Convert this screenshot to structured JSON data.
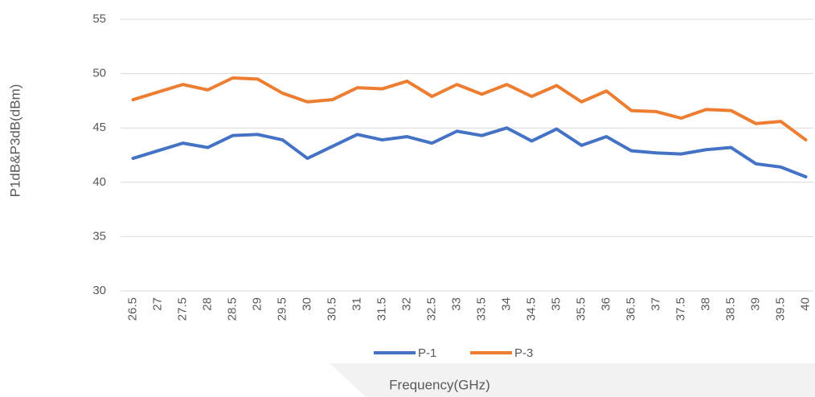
{
  "chart_data": {
    "type": "line",
    "x_label": "Frequency(GHz)",
    "y_label": "P1dB&P3dB(dBm)",
    "categories": [
      "26.5",
      "27",
      "27.5",
      "28",
      "28.5",
      "29",
      "29.5",
      "30",
      "30.5",
      "31",
      "31.5",
      "32",
      "32.5",
      "33",
      "33.5",
      "34",
      "34.5",
      "35",
      "35.5",
      "36",
      "36.5",
      "37",
      "37.5",
      "38",
      "38.5",
      "39",
      "39.5",
      "40"
    ],
    "series": [
      {
        "name": "P-1",
        "color": "#4472c4",
        "values": [
          42.2,
          42.9,
          43.6,
          43.2,
          44.3,
          44.4,
          43.9,
          42.2,
          43.3,
          44.4,
          43.9,
          44.2,
          43.6,
          44.7,
          44.3,
          45.0,
          43.8,
          44.9,
          43.4,
          44.2,
          42.9,
          42.7,
          42.6,
          43.0,
          43.2,
          41.7,
          41.4,
          40.5
        ]
      },
      {
        "name": "P-3",
        "color": "#ed7d31",
        "values": [
          47.6,
          48.3,
          49.0,
          48.5,
          49.6,
          49.5,
          48.2,
          47.4,
          47.6,
          48.7,
          48.6,
          49.3,
          47.9,
          49.0,
          48.1,
          49.0,
          47.9,
          48.9,
          47.4,
          48.4,
          46.6,
          46.5,
          45.9,
          46.7,
          46.6,
          45.4,
          45.6,
          43.9
        ]
      }
    ],
    "ylim": [
      30,
      55
    ],
    "yticks": [
      30,
      35,
      40,
      45,
      50,
      55
    ],
    "grid": true
  }
}
